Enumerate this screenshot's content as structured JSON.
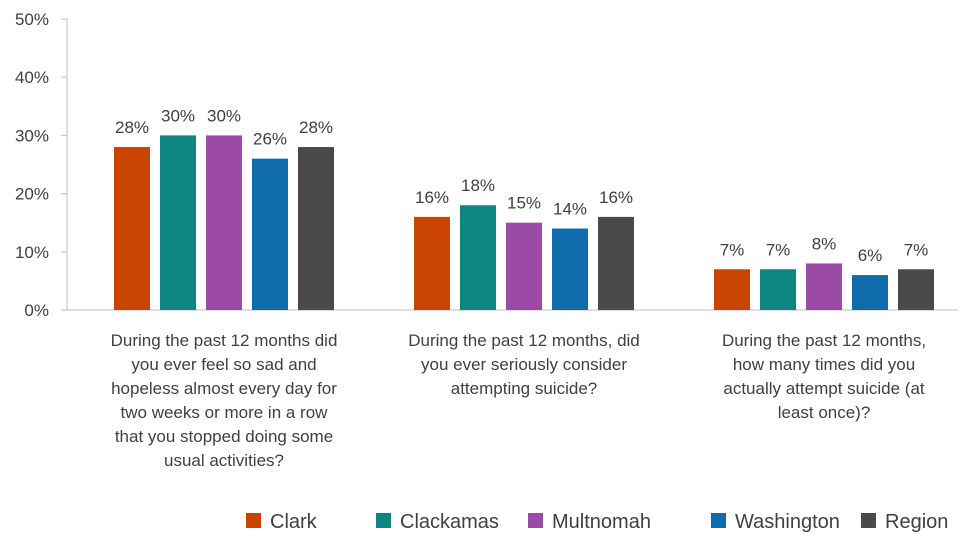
{
  "chart_data": {
    "type": "bar",
    "title": "",
    "xlabel": "",
    "ylabel": "",
    "ylim": [
      0,
      50
    ],
    "y_ticks": [
      "0%",
      "10%",
      "20%",
      "30%",
      "40%",
      "50%"
    ],
    "grid": false,
    "legend_position": "bottom",
    "categories": [
      "During the past 12 months did you ever feel so sad and hopeless almost every day for two weeks or more in a row that you stopped doing some usual activities?",
      "During the past 12 months, did you ever seriously consider attempting suicide?",
      "During the past 12 months, how many times did you actually attempt suicide (at least once)?"
    ],
    "category_lines": [
      [
        "During the past 12 months did",
        "you ever feel so sad and",
        "hopeless almost every day for",
        "two weeks or more in a row",
        "that you stopped doing some",
        "usual activities?"
      ],
      [
        "During the past 12 months, did",
        "you ever seriously consider",
        "attempting suicide?"
      ],
      [
        "During the past 12 months,",
        "how many times did you",
        "actually attempt suicide (at",
        "least once)?"
      ]
    ],
    "series": [
      {
        "name": "Clark",
        "color": "#C84400",
        "values": [
          28,
          16,
          7
        ],
        "labels": [
          "28%",
          "16%",
          "7%"
        ]
      },
      {
        "name": "Clackamas",
        "color": "#0C8583",
        "values": [
          30,
          18,
          7
        ],
        "labels": [
          "30%",
          "18%",
          "7%"
        ]
      },
      {
        "name": "Multnomah",
        "color": "#9B4BA5",
        "values": [
          30,
          15,
          8
        ],
        "labels": [
          "30%",
          "15%",
          "8%"
        ]
      },
      {
        "name": "Washington",
        "color": "#0E6CAC",
        "values": [
          26,
          14,
          6
        ],
        "labels": [
          "26%",
          "14%",
          "6%"
        ]
      },
      {
        "name": "Region",
        "color": "#4A4A4A",
        "values": [
          28,
          16,
          7
        ],
        "labels": [
          "28%",
          "16%",
          "7%"
        ]
      }
    ]
  }
}
